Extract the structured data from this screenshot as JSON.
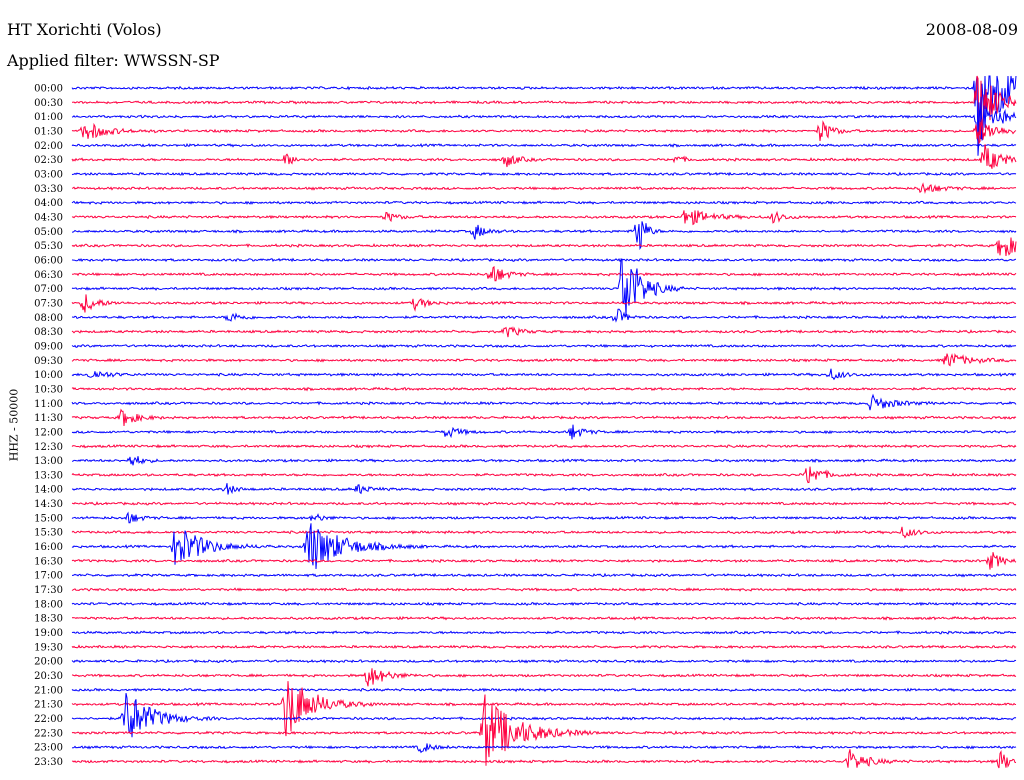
{
  "header": {
    "station": "HT Xorichti (Volos)",
    "date": "2008-08-09",
    "filter": "Applied filter: WWSSN-SP"
  },
  "chart_data": {
    "type": "line",
    "title": "HT Xorichti (Volos)",
    "subtitle": "Applied filter: WWSSN-SP",
    "ylabel": "HHZ - 50000",
    "xlabel": "",
    "row_labels": [
      "00:00",
      "00:30",
      "01:00",
      "01:30",
      "02:00",
      "02:30",
      "03:00",
      "03:30",
      "04:00",
      "04:30",
      "05:00",
      "05:30",
      "06:00",
      "06:30",
      "07:00",
      "07:30",
      "08:00",
      "08:30",
      "09:00",
      "09:30",
      "10:00",
      "10:30",
      "11:00",
      "11:30",
      "12:00",
      "12:30",
      "13:00",
      "13:30",
      "14:00",
      "14:30",
      "15:00",
      "15:30",
      "16:00",
      "16:30",
      "17:00",
      "17:30",
      "18:00",
      "18:30",
      "19:00",
      "19:30",
      "20:00",
      "20:30",
      "21:00",
      "21:30",
      "22:00",
      "22:30",
      "23:00",
      "23:30"
    ],
    "row_minutes": 30,
    "colors": [
      "#0000ff",
      "#ff0040"
    ],
    "grid": false,
    "events": [
      {
        "row": 0,
        "minute": 28.8,
        "amp": 80,
        "width": 1.2
      },
      {
        "row": 1,
        "minute": 28.8,
        "amp": 40,
        "width": 0.8
      },
      {
        "row": 2,
        "minute": 28.8,
        "amp": 30,
        "width": 0.8
      },
      {
        "row": 3,
        "minute": 0.4,
        "amp": 10,
        "width": 1.0
      },
      {
        "row": 3,
        "minute": 23.8,
        "amp": 12,
        "width": 0.5
      },
      {
        "row": 3,
        "minute": 28.8,
        "amp": 15,
        "width": 0.8
      },
      {
        "row": 5,
        "minute": 6.8,
        "amp": 6,
        "width": 0.5
      },
      {
        "row": 5,
        "minute": 13.8,
        "amp": 8,
        "width": 0.5
      },
      {
        "row": 5,
        "minute": 19.2,
        "amp": 4,
        "width": 0.4
      },
      {
        "row": 5,
        "minute": 29.0,
        "amp": 15,
        "width": 0.8
      },
      {
        "row": 7,
        "minute": 27.0,
        "amp": 6,
        "width": 0.8
      },
      {
        "row": 9,
        "minute": 10.0,
        "amp": 5,
        "width": 0.5
      },
      {
        "row": 9,
        "minute": 19.5,
        "amp": 10,
        "width": 1.0
      },
      {
        "row": 9,
        "minute": 22.3,
        "amp": 6,
        "width": 0.5
      },
      {
        "row": 10,
        "minute": 12.8,
        "amp": 8,
        "width": 0.5
      },
      {
        "row": 10,
        "minute": 18.0,
        "amp": 30,
        "width": 0.3
      },
      {
        "row": 11,
        "minute": 29.5,
        "amp": 15,
        "width": 0.8
      },
      {
        "row": 13,
        "minute": 13.3,
        "amp": 12,
        "width": 0.6
      },
      {
        "row": 14,
        "minute": 17.5,
        "amp": 50,
        "width": 0.8
      },
      {
        "row": 15,
        "minute": 0.4,
        "amp": 10,
        "width": 0.6
      },
      {
        "row": 15,
        "minute": 10.9,
        "amp": 6,
        "width": 0.6
      },
      {
        "row": 16,
        "minute": 5.0,
        "amp": 5,
        "width": 0.6
      },
      {
        "row": 16,
        "minute": 17.3,
        "amp": 10,
        "width": 0.4
      },
      {
        "row": 17,
        "minute": 13.8,
        "amp": 6,
        "width": 0.6
      },
      {
        "row": 19,
        "minute": 27.8,
        "amp": 8,
        "width": 1.0
      },
      {
        "row": 20,
        "minute": 0.6,
        "amp": 5,
        "width": 0.8
      },
      {
        "row": 20,
        "minute": 24.1,
        "amp": 6,
        "width": 0.6
      },
      {
        "row": 22,
        "minute": 25.4,
        "amp": 8,
        "width": 1.0
      },
      {
        "row": 23,
        "minute": 1.6,
        "amp": 10,
        "width": 0.6
      },
      {
        "row": 24,
        "minute": 11.9,
        "amp": 6,
        "width": 0.6
      },
      {
        "row": 24,
        "minute": 15.9,
        "amp": 8,
        "width": 0.5
      },
      {
        "row": 26,
        "minute": 1.9,
        "amp": 8,
        "width": 0.4
      },
      {
        "row": 27,
        "minute": 23.4,
        "amp": 12,
        "width": 0.6
      },
      {
        "row": 28,
        "minute": 4.9,
        "amp": 6,
        "width": 0.4
      },
      {
        "row": 28,
        "minute": 9.1,
        "amp": 5,
        "width": 0.5
      },
      {
        "row": 30,
        "minute": 1.8,
        "amp": 6,
        "width": 0.5
      },
      {
        "row": 30,
        "minute": 7.7,
        "amp": 5,
        "width": 0.4
      },
      {
        "row": 31,
        "minute": 26.4,
        "amp": 6,
        "width": 0.6
      },
      {
        "row": 32,
        "minute": 3.3,
        "amp": 25,
        "width": 1.2
      },
      {
        "row": 32,
        "minute": 7.5,
        "amp": 30,
        "width": 1.5
      },
      {
        "row": 33,
        "minute": 29.2,
        "amp": 10,
        "width": 0.5
      },
      {
        "row": 41,
        "minute": 9.4,
        "amp": 12,
        "width": 0.8
      },
      {
        "row": 43,
        "minute": 6.8,
        "amp": 35,
        "width": 1.2
      },
      {
        "row": 44,
        "minute": 1.7,
        "amp": 30,
        "width": 1.2
      },
      {
        "row": 45,
        "minute": 13.1,
        "amp": 40,
        "width": 1.5
      },
      {
        "row": 46,
        "minute": 11.1,
        "amp": 6,
        "width": 0.5
      },
      {
        "row": 47,
        "minute": 24.7,
        "amp": 12,
        "width": 0.8
      },
      {
        "row": 47,
        "minute": 29.5,
        "amp": 10,
        "width": 0.6
      }
    ]
  }
}
